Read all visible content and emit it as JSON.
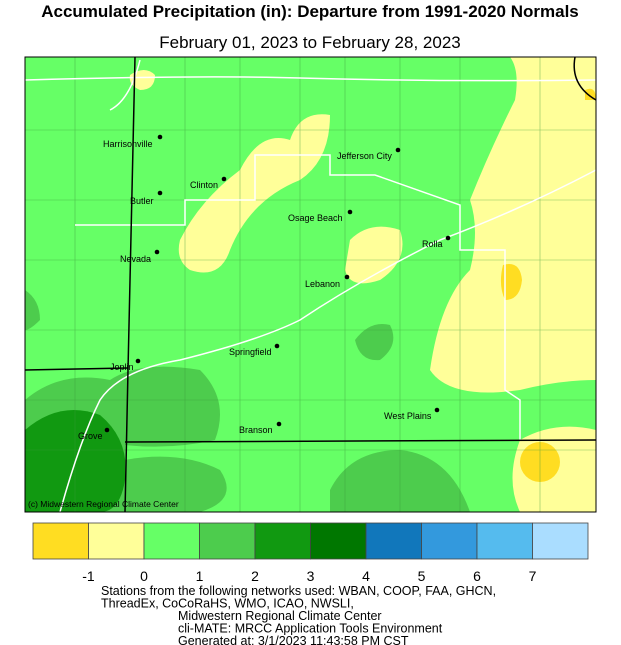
{
  "header": {
    "title": "Accumulated Precipitation (in): Departure from 1991-2020 Normals",
    "subtitle": "February 01, 2023 to February 28, 2023"
  },
  "map": {
    "cities": [
      "Harrisonville",
      "Jefferson City",
      "Clinton",
      "Butler",
      "Osage Beach",
      "Rolla",
      "Nevada",
      "Lebanon",
      "Springfield",
      "Joplin",
      "West Plains",
      "Branson",
      "Grove"
    ],
    "credit": "(c) Midwestern Regional Climate Center"
  },
  "legend": {
    "colors": [
      "#ffdd22",
      "#ffff99",
      "#66ff66",
      "#4dcc4d",
      "#119911",
      "#007700",
      "#1177bb",
      "#3399dd",
      "#55bbee",
      "#aaddff"
    ],
    "ticks": [
      -1,
      0,
      1,
      2,
      3,
      4,
      5,
      6,
      7
    ]
  },
  "footer": {
    "lines": [
      "Stations from the following networks used: WBAN, COOP, FAA, GHCN,",
      "ThreadEx, CoCoRaHS, WMO, ICAO, NWSLI,",
      "Midwestern Regional Climate Center",
      "cli-MATE: MRCC Application Tools Environment",
      "Generated at: 3/1/2023 11:43:58 PM CST"
    ]
  }
}
